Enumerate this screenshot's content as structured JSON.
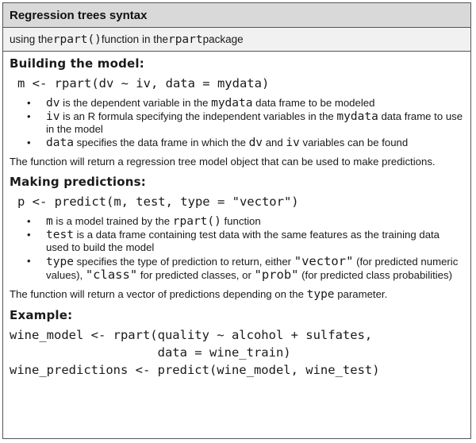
{
  "header": {
    "title": "Regression trees syntax"
  },
  "subheader": {
    "p1": "using the ",
    "func": "rpart()",
    "p2": " function in the ",
    "pkg": "rpart",
    "p3": " package"
  },
  "building": {
    "heading": "Building the model:",
    "code": "m <- rpart(dv ~ iv, data = mydata)",
    "b1": {
      "code": "dv",
      "t1": " is the dependent variable in the ",
      "code2": "mydata",
      "t2": " data frame to be modeled"
    },
    "b2": {
      "code": "iv",
      "t1": " is an R formula specifying the independent variables in the ",
      "code2": "mydata",
      "t2": " data frame to use in the model"
    },
    "b3": {
      "code": "data",
      "t1": " specifies the data frame in which the ",
      "code2": "dv",
      "t2": " and ",
      "code3": "iv",
      "t3": " variables can be found"
    },
    "summary": "The function will return a regression tree model object that can be used to make predictions."
  },
  "predicting": {
    "heading": "Making predictions:",
    "code": "p <- predict(m, test, type = \"vector\")",
    "b1": {
      "code": "m",
      "t1": " is a model trained by the ",
      "code2": "rpart()",
      "t2": " function"
    },
    "b2": {
      "code": "test",
      "t1": " is a data frame containing test data with the same features as the training data used to build the model"
    },
    "b3": {
      "code": "type",
      "t1": " specifies the type of prediction to return, either ",
      "q1": "\"vector\"",
      "t2": " (for predicted numeric values), ",
      "q2": "\"class\"",
      "t3": " for predicted classes, or ",
      "q3": "\"prob\"",
      "t4": " (for predicted class probabilities)"
    },
    "summary_p1": "The function will return a vector of predictions depending on the ",
    "summary_code": "type",
    "summary_p2": " parameter."
  },
  "example": {
    "heading": "Example:",
    "line1": "wine_model <- rpart(quality ~ alcohol + sulfates,",
    "line2": "                    data = wine_train)",
    "line3": "wine_predictions <- predict(wine_model, wine_test)"
  }
}
